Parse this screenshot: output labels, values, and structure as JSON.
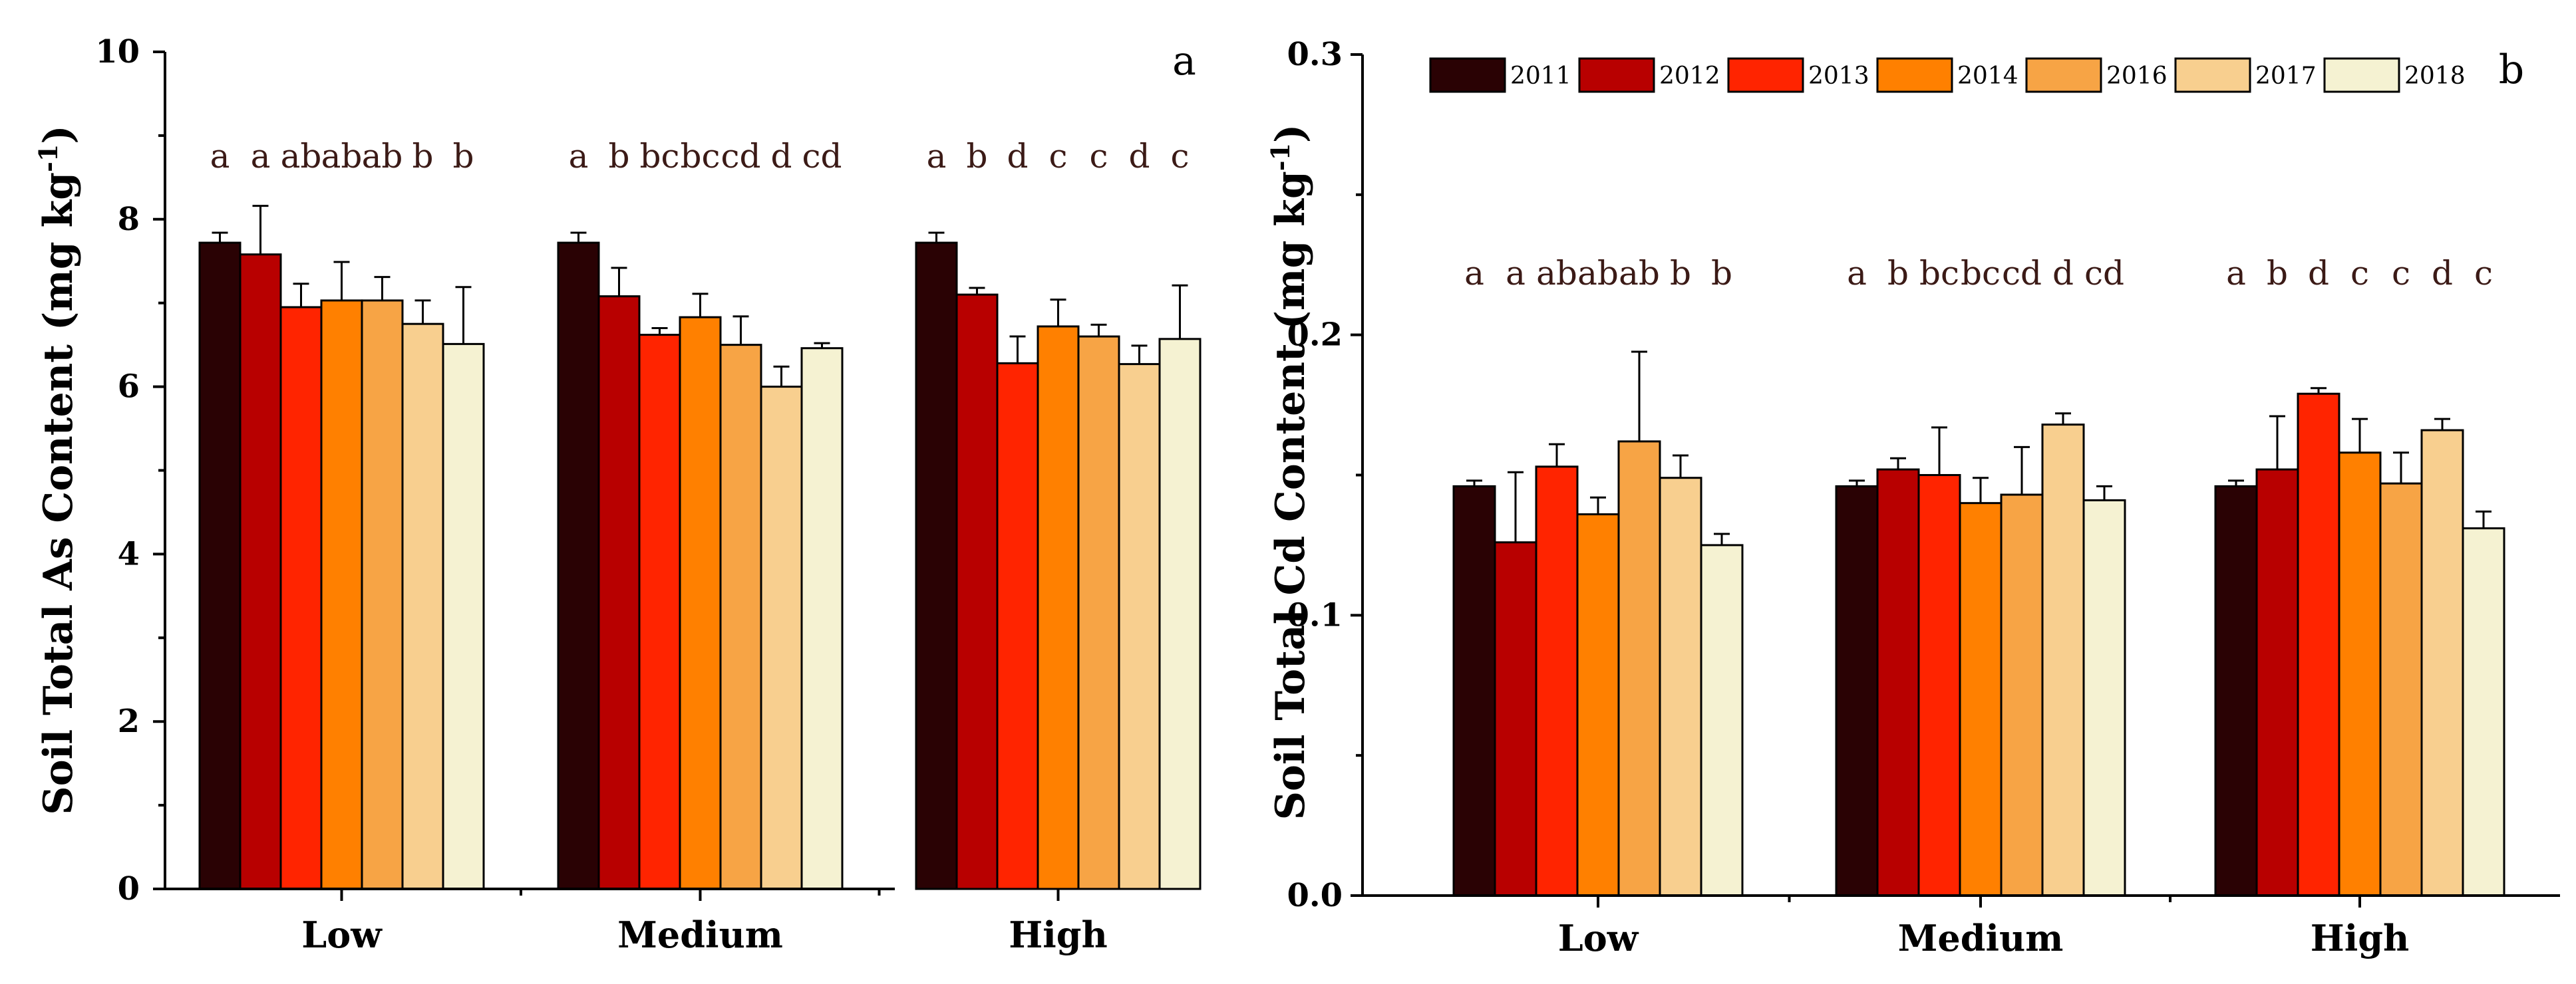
{
  "legend": {
    "series": [
      "2011",
      "2012",
      "2013",
      "2014",
      "2016",
      "2017",
      "2018"
    ],
    "colors": [
      "#2a0204",
      "#b80000",
      "#ff2400",
      "#ff8000",
      "#f7a445",
      "#f8cf8f",
      "#f5f2d2"
    ]
  },
  "chart_data": [
    {
      "id": "a",
      "type": "bar",
      "panel_label": "a",
      "title": "",
      "xlabel": "",
      "ylabel": "Soil Total As Content (mg kg",
      "ylabel_sup": "-1",
      "ylabel_tail": ")",
      "ylim": [
        0,
        10
      ],
      "yticks": [
        0,
        2,
        4,
        6,
        8,
        10
      ],
      "ytick_labels": [
        "0",
        "2",
        "4",
        "6",
        "8",
        "10"
      ],
      "categories": [
        "Low",
        "Medium",
        "High"
      ],
      "series": [
        {
          "name": "2011",
          "values": [
            7.72,
            7.72,
            7.72
          ],
          "errors": [
            0.12,
            0.12,
            0.12
          ]
        },
        {
          "name": "2012",
          "values": [
            7.58,
            7.08,
            7.1
          ],
          "errors": [
            0.58,
            0.34,
            0.08
          ]
        },
        {
          "name": "2013",
          "values": [
            6.95,
            6.62,
            6.28
          ],
          "errors": [
            0.28,
            0.08,
            0.32
          ]
        },
        {
          "name": "2014",
          "values": [
            7.03,
            6.83,
            6.72
          ],
          "errors": [
            0.46,
            0.28,
            0.32
          ]
        },
        {
          "name": "2016",
          "values": [
            7.03,
            6.5,
            6.6
          ],
          "errors": [
            0.28,
            0.34,
            0.14
          ]
        },
        {
          "name": "2017",
          "values": [
            6.75,
            6.0,
            6.27
          ],
          "errors": [
            0.28,
            0.24,
            0.22
          ]
        },
        {
          "name": "2018",
          "values": [
            6.51,
            6.46,
            6.57
          ],
          "errors": [
            0.68,
            0.06,
            0.64
          ]
        }
      ],
      "significance": [
        [
          "a",
          "a",
          "ab",
          "ab",
          "ab",
          "b",
          "b"
        ],
        [
          "a",
          "b",
          "bc",
          "bc",
          "cd",
          "d",
          "cd"
        ],
        [
          "a",
          "b",
          "d",
          "c",
          "c",
          "d",
          "c"
        ]
      ]
    },
    {
      "id": "b",
      "type": "bar",
      "panel_label": "b",
      "title": "",
      "xlabel": "",
      "ylabel": "Soil Total Cd Content (mg kg",
      "ylabel_sup": "-1",
      "ylabel_tail": ")",
      "ylim": [
        0,
        0.3
      ],
      "yticks": [
        0.0,
        0.1,
        0.2,
        0.3
      ],
      "ytick_labels": [
        "0.0",
        "0.1",
        "0.2",
        "0.3"
      ],
      "categories": [
        "Low",
        "Medium",
        "High"
      ],
      "series": [
        {
          "name": "2011",
          "values": [
            0.146,
            0.146,
            0.146
          ],
          "errors": [
            0.002,
            0.002,
            0.002
          ]
        },
        {
          "name": "2012",
          "values": [
            0.126,
            0.152,
            0.152
          ],
          "errors": [
            0.025,
            0.004,
            0.019
          ]
        },
        {
          "name": "2013",
          "values": [
            0.153,
            0.15,
            0.179
          ],
          "errors": [
            0.008,
            0.017,
            0.002
          ]
        },
        {
          "name": "2014",
          "values": [
            0.136,
            0.14,
            0.158
          ],
          "errors": [
            0.006,
            0.009,
            0.012
          ]
        },
        {
          "name": "2016",
          "values": [
            0.162,
            0.143,
            0.147
          ],
          "errors": [
            0.032,
            0.017,
            0.011
          ]
        },
        {
          "name": "2017",
          "values": [
            0.149,
            0.168,
            0.166
          ],
          "errors": [
            0.008,
            0.004,
            0.004
          ]
        },
        {
          "name": "2018",
          "values": [
            0.125,
            0.141,
            0.131
          ],
          "errors": [
            0.004,
            0.005,
            0.006
          ]
        }
      ],
      "significance": [
        [
          "a",
          "a",
          "ab",
          "ab",
          "ab",
          "b",
          "b"
        ],
        [
          "a",
          "b",
          "bc",
          "bc",
          "cd",
          "d",
          "cd"
        ],
        [
          "a",
          "b",
          "d",
          "c",
          "c",
          "d",
          "c"
        ]
      ]
    }
  ]
}
